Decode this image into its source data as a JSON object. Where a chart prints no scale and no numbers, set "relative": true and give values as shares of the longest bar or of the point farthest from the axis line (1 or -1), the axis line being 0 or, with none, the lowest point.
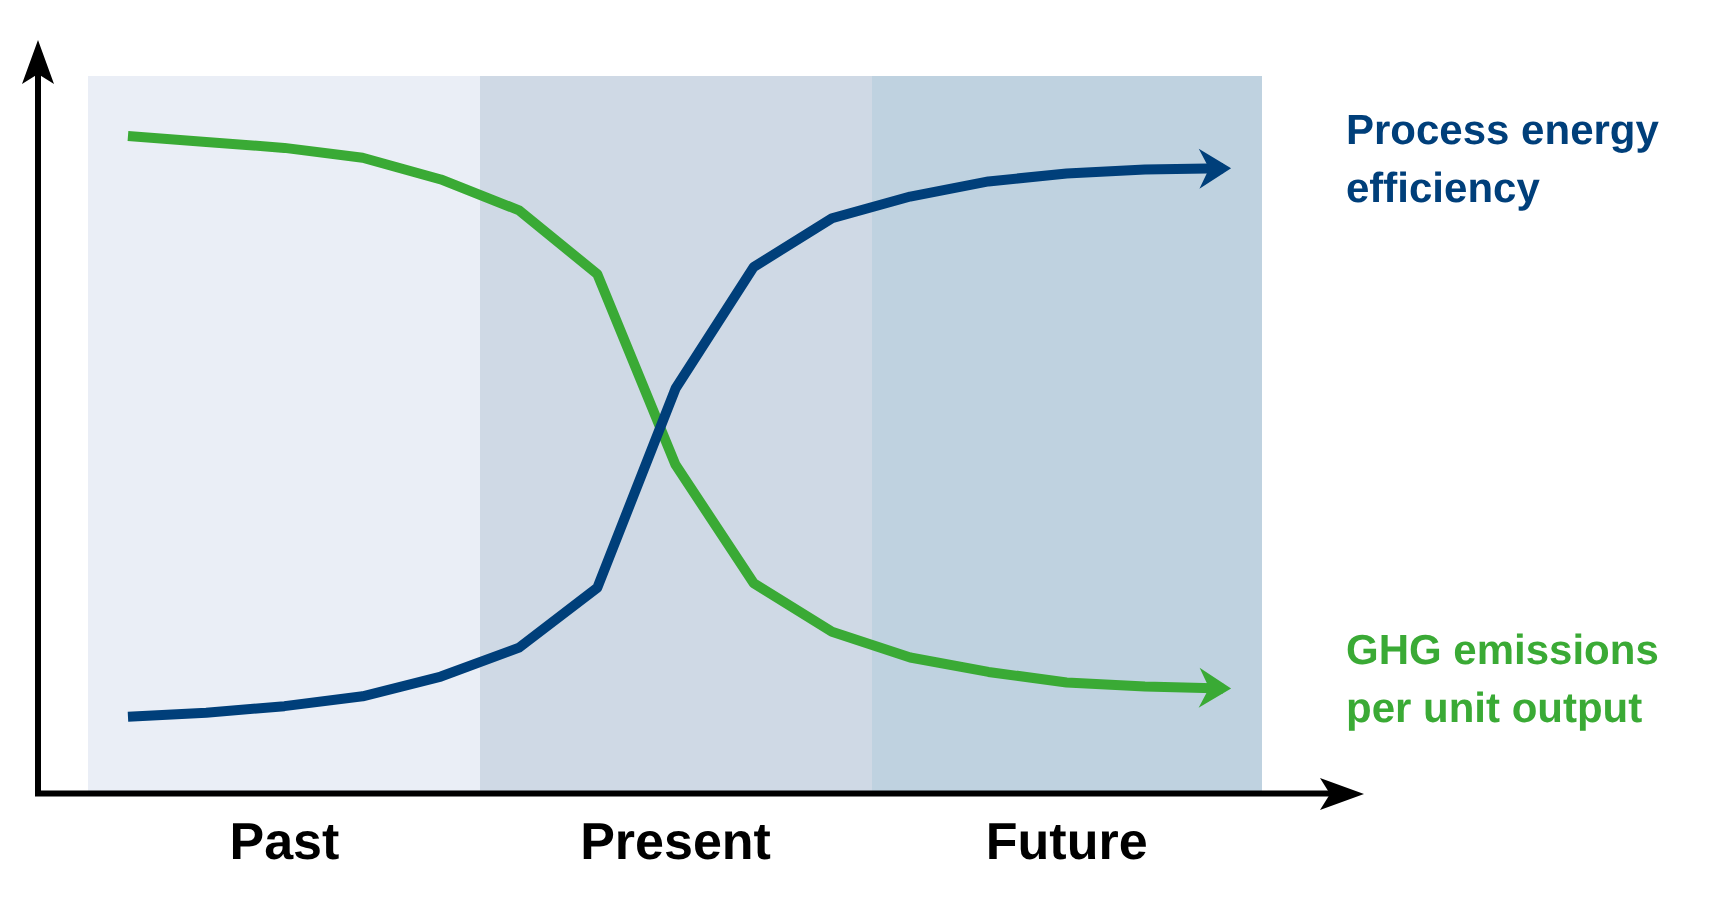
{
  "chart_data": {
    "type": "line",
    "relative": true,
    "tick_labels": "x",
    "legend": false,
    "marker": "none",
    "line_style": "solid",
    "categories": [
      null,
      null,
      "Past",
      null,
      null,
      null,
      null,
      "Present",
      null,
      null,
      null,
      null,
      "Future",
      null,
      null
    ],
    "series": [
      {
        "name": "Process energy efficiency",
        "color": "#003f7a",
        "values": [
          0.117,
          0.123,
          0.133,
          0.148,
          0.178,
          0.222,
          0.313,
          0.616,
          0.801,
          0.875,
          0.908,
          0.931,
          0.943,
          0.949,
          0.951
        ]
      },
      {
        "name": "GHG emissions per unit output",
        "color": "#3aaa35",
        "values": [
          1.0,
          0.991,
          0.982,
          0.967,
          0.934,
          0.887,
          0.79,
          0.5,
          0.32,
          0.246,
          0.207,
          0.185,
          0.169,
          0.163,
          0.16
        ]
      }
    ]
  }
}
